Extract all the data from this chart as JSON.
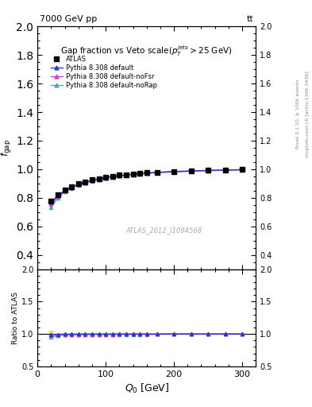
{
  "title_top": "7000 GeV pp",
  "title_top_right": "tt",
  "main_title": "Gap fraction vs Veto scale(p_{T}^{jets}>25 GeV)",
  "watermark": "ATLAS_2012_I1094568",
  "rivet_line1": "Rivet 3.1.10, ≥ 100k events",
  "rivet_line2": "mcplots.cern.ch [arXiv:1306.3436]",
  "xlabel": "Q_{0} [GeV]",
  "ylabel_main": "f_{gap}",
  "ylabel_ratio": "Ratio to ATLAS",
  "xlim": [
    0,
    320
  ],
  "ylim_main": [
    0.3,
    2.0
  ],
  "ylim_ratio": [
    0.5,
    2.0
  ],
  "yticks_main": [
    0.4,
    0.6,
    0.8,
    1.0,
    1.2,
    1.4,
    1.6,
    1.8,
    2.0
  ],
  "yticks_ratio": [
    0.5,
    1.0,
    1.5,
    2.0
  ],
  "Q0_data": [
    20,
    30,
    40,
    50,
    60,
    70,
    80,
    90,
    100,
    110,
    120,
    130,
    140,
    150,
    160,
    175,
    200,
    225,
    250,
    275,
    300
  ],
  "atlas_fgap": [
    0.775,
    0.82,
    0.855,
    0.878,
    0.898,
    0.912,
    0.925,
    0.935,
    0.945,
    0.952,
    0.958,
    0.963,
    0.968,
    0.972,
    0.976,
    0.98,
    0.985,
    0.989,
    0.993,
    0.995,
    0.998
  ],
  "pythia_default": [
    0.77,
    0.815,
    0.852,
    0.875,
    0.896,
    0.91,
    0.923,
    0.933,
    0.943,
    0.95,
    0.956,
    0.961,
    0.966,
    0.97,
    0.974,
    0.978,
    0.984,
    0.988,
    0.992,
    0.994,
    0.997
  ],
  "pythia_nofsr": [
    0.755,
    0.808,
    0.847,
    0.871,
    0.892,
    0.907,
    0.92,
    0.93,
    0.94,
    0.947,
    0.954,
    0.96,
    0.965,
    0.969,
    0.973,
    0.977,
    0.983,
    0.987,
    0.991,
    0.993,
    0.997
  ],
  "pythia_norap": [
    0.735,
    0.797,
    0.843,
    0.868,
    0.89,
    0.905,
    0.918,
    0.929,
    0.939,
    0.946,
    0.953,
    0.958,
    0.963,
    0.967,
    0.971,
    0.976,
    0.982,
    0.986,
    0.99,
    0.993,
    0.997
  ],
  "color_atlas": "#000000",
  "color_default": "#3333cc",
  "color_nofsr": "#cc44cc",
  "color_norap": "#44aacc",
  "color_ratio_band": "#dddd00",
  "bg_color": "#ffffff"
}
